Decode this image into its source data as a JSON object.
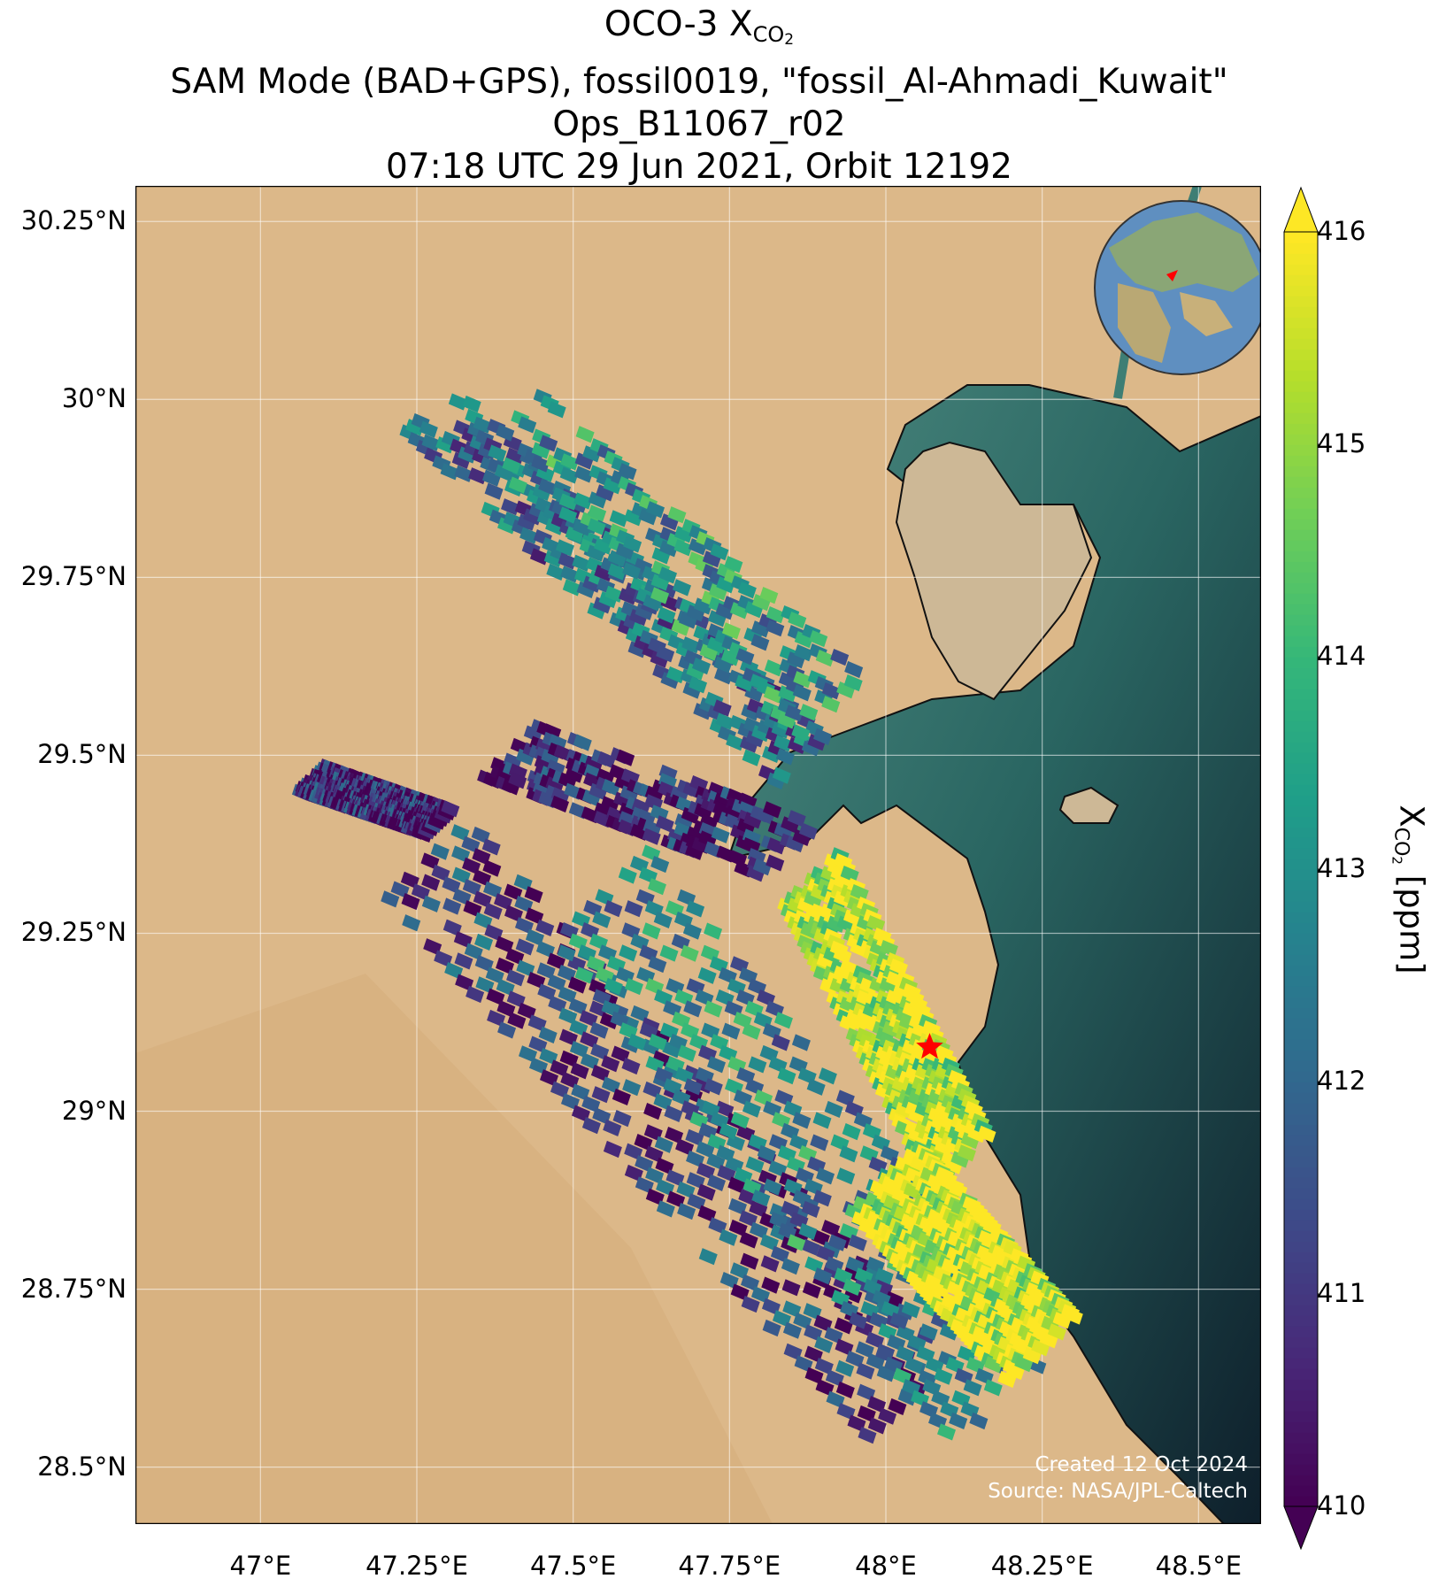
{
  "title": {
    "line1_prefix": "OCO-3 X",
    "line1_sub": "CO",
    "line1_sub2": "2",
    "line2": "SAM Mode (BAD+GPS), fossil0019, \"fossil_Al-Ahmadi_Kuwait\"",
    "line3": "Ops_B11067_r02",
    "line4": "07:18 UTC 29 Jun 2021, Orbit 12192"
  },
  "map": {
    "lon_range": [
      46.8,
      48.6
    ],
    "lat_range": [
      28.42,
      30.3
    ],
    "lat_ticks": [
      {
        "value": 30.25,
        "label": "30.25°N"
      },
      {
        "value": 30.0,
        "label": "30°N"
      },
      {
        "value": 29.75,
        "label": "29.75°N"
      },
      {
        "value": 29.5,
        "label": "29.5°N"
      },
      {
        "value": 29.25,
        "label": "29.25°N"
      },
      {
        "value": 29.0,
        "label": "29°N"
      },
      {
        "value": 28.75,
        "label": "28.75°N"
      },
      {
        "value": 28.5,
        "label": "28.5°N"
      }
    ],
    "lon_ticks": [
      {
        "value": 47.0,
        "label": "47°E"
      },
      {
        "value": 47.25,
        "label": "47.25°E"
      },
      {
        "value": 47.5,
        "label": "47.5°E"
      },
      {
        "value": 47.75,
        "label": "47.75°E"
      },
      {
        "value": 48.0,
        "label": "48°E"
      },
      {
        "value": 48.25,
        "label": "48.25°E"
      },
      {
        "value": 48.5,
        "label": "48.5°E"
      }
    ],
    "gridlines": true,
    "target_marker": {
      "lon": 48.07,
      "lat": 29.09,
      "color": "#ff0000"
    },
    "credit_line1": "Created 12 Oct 2024",
    "credit_line2": "Source: NASA/JPL-Caltech",
    "inset_globe": "top-right"
  },
  "colorbar": {
    "min": 410,
    "max": 416,
    "ticks": [
      "410",
      "411",
      "412",
      "413",
      "414",
      "415",
      "416"
    ],
    "label_prefix": "X",
    "label_sub": "CO",
    "label_sub2": "2",
    "label_suffix": " [ppm]",
    "colormap": "viridis",
    "extend": "both"
  },
  "colors": {
    "desert": "#dcb889",
    "water": "#1f5c5a",
    "deep_water": "#0f2630"
  }
}
